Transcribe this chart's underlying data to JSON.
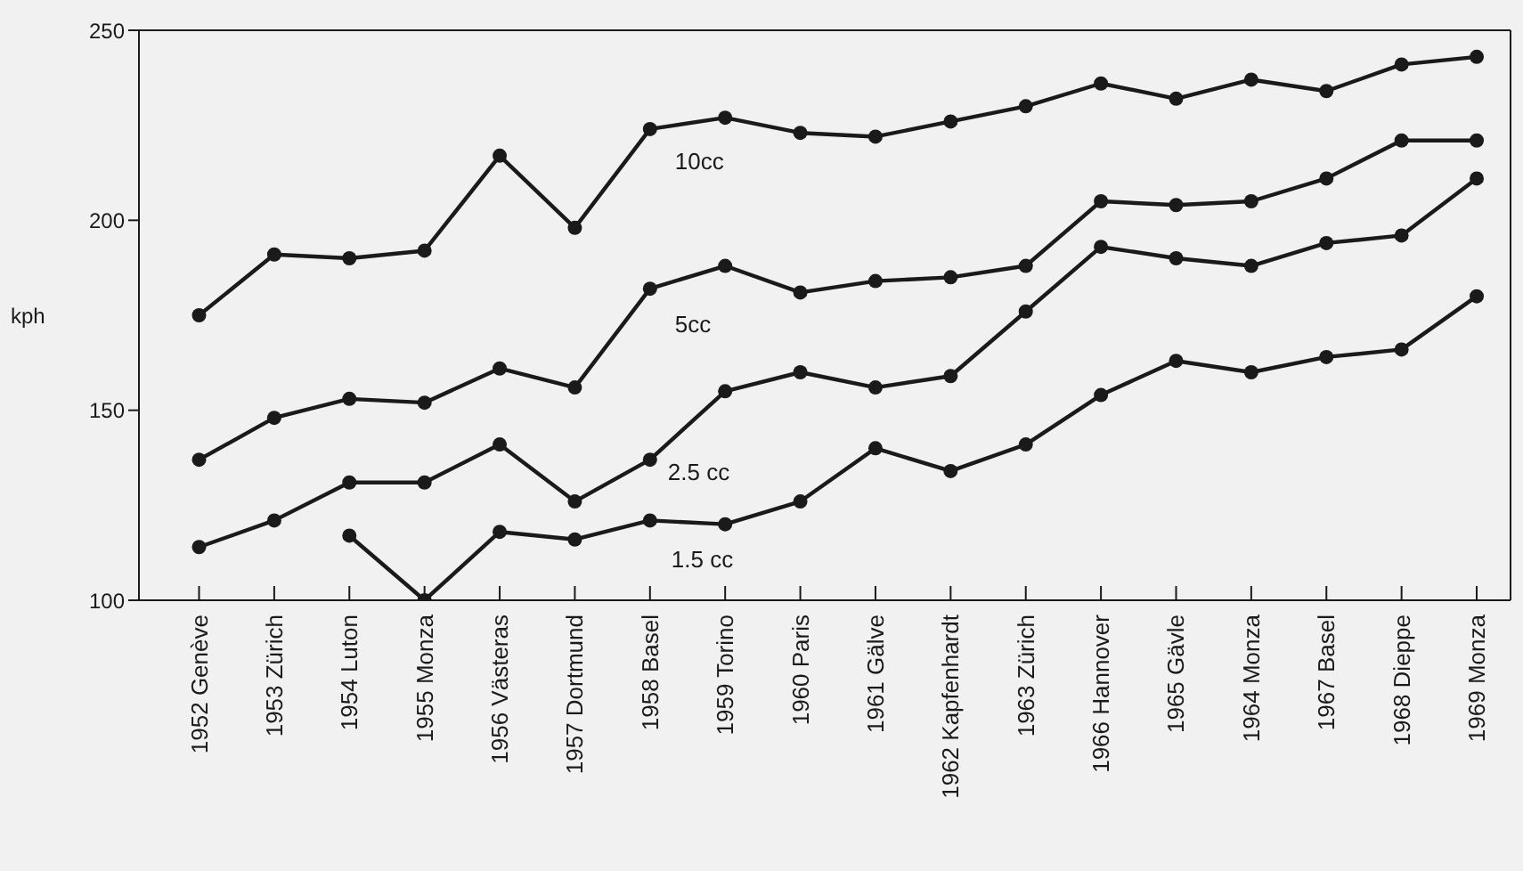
{
  "chart_data": {
    "type": "line",
    "ylabel": "kph",
    "categories": [
      "1952 Genève",
      "1953 Zürich",
      "1954 Luton",
      "1955 Monza",
      "1956 Västeras",
      "1957 Dortmund",
      "1958 Basel",
      "1959 Torino",
      "1960 Paris",
      "1961 Gälve",
      "1962 Kapfenhardt",
      "1963 Zürich",
      "1966 Hannover",
      "1965 Gävle",
      "1964 Monza",
      "1967 Basel",
      "1968 Dieppe",
      "1969 Monza"
    ],
    "series": [
      {
        "name": "10cc",
        "color": "#1a1a1a",
        "values": [
          175,
          191,
          190,
          192,
          217,
          198,
          224,
          227,
          223,
          222,
          226,
          230,
          236,
          232,
          237,
          234,
          241,
          243
        ]
      },
      {
        "name": "5cc",
        "color": "#1a1a1a",
        "values": [
          137,
          148,
          153,
          152,
          161,
          156,
          182,
          188,
          181,
          184,
          185,
          188,
          205,
          204,
          205,
          211,
          221,
          221
        ]
      },
      {
        "name": "2.5 cc",
        "color": "#1a1a1a",
        "values": [
          114,
          121,
          131,
          131,
          141,
          126,
          137,
          155,
          160,
          156,
          159,
          176,
          193,
          190,
          188,
          194,
          196,
          211
        ]
      },
      {
        "name": "1.5 cc",
        "color": "#1a1a1a",
        "values": [
          null,
          null,
          117,
          100,
          118,
          116,
          121,
          120,
          126,
          140,
          134,
          141,
          154,
          163,
          160,
          164,
          166,
          180
        ]
      }
    ],
    "ylim": [
      100,
      250
    ],
    "yticks": [
      100,
      150,
      200,
      250
    ],
    "grid": false,
    "legend": false,
    "marker": "circle",
    "line_style": "solid"
  }
}
